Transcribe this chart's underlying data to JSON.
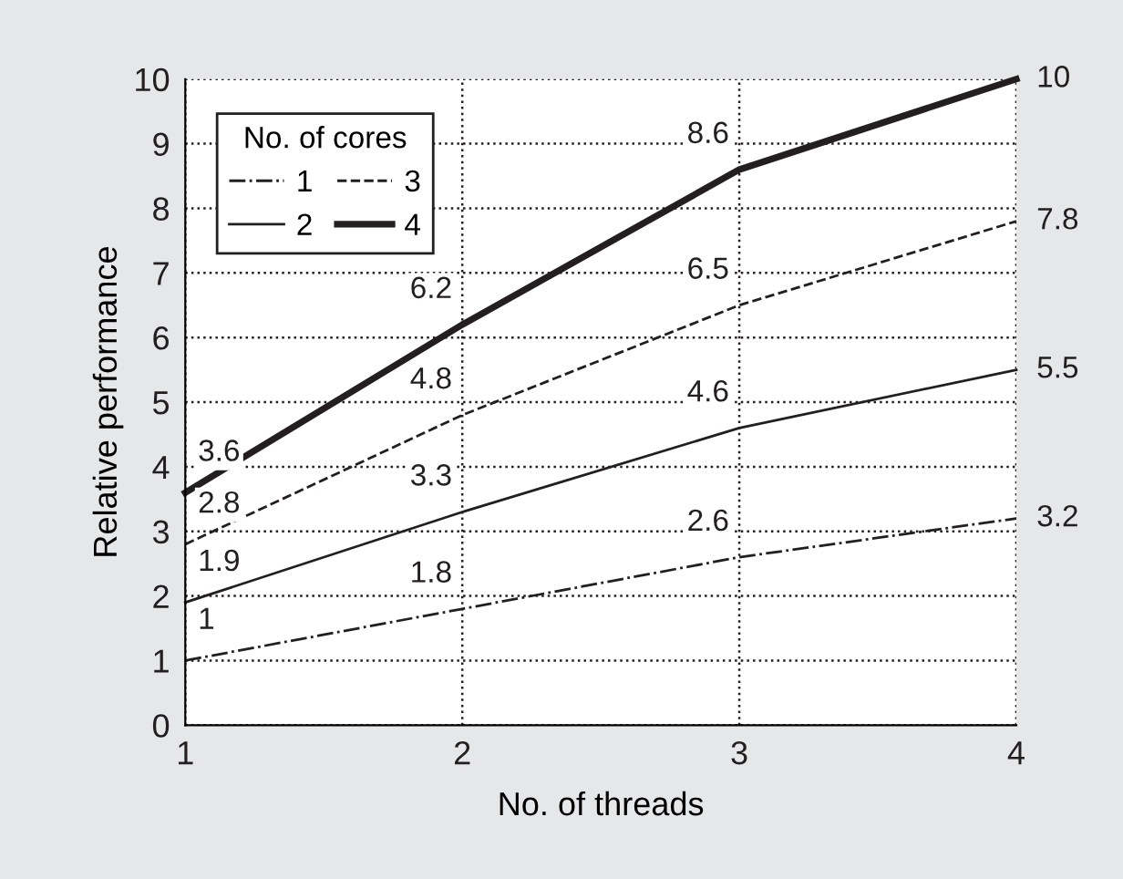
{
  "chart_data": {
    "type": "line",
    "xlabel": "No. of threads",
    "ylabel": "Relative performance",
    "legend_title": "No. of cores",
    "x": [
      1,
      2,
      3,
      4
    ],
    "series": [
      {
        "name": "1",
        "color": "#231f20",
        "line_style": "dashdot",
        "values": [
          1,
          1.8,
          2.6,
          3.2
        ]
      },
      {
        "name": "2",
        "color": "#231f20",
        "line_style": "solid",
        "values": [
          1.9,
          3.3,
          4.6,
          5.5
        ]
      },
      {
        "name": "3",
        "color": "#231f20",
        "line_style": "dashed",
        "values": [
          2.8,
          4.8,
          6.5,
          7.8
        ]
      },
      {
        "name": "4",
        "color": "#231f20",
        "line_style": "solid",
        "values": [
          3.6,
          6.2,
          8.6,
          10
        ]
      }
    ],
    "xlim": [
      1,
      4
    ],
    "xticks": [
      1,
      2,
      3,
      4
    ],
    "ylim": [
      0,
      10
    ],
    "yticks": [
      0,
      1,
      2,
      3,
      4,
      5,
      6,
      7,
      8,
      9,
      10
    ],
    "grid": true,
    "legend": "top left",
    "data_labels": true,
    "marker": "none"
  }
}
